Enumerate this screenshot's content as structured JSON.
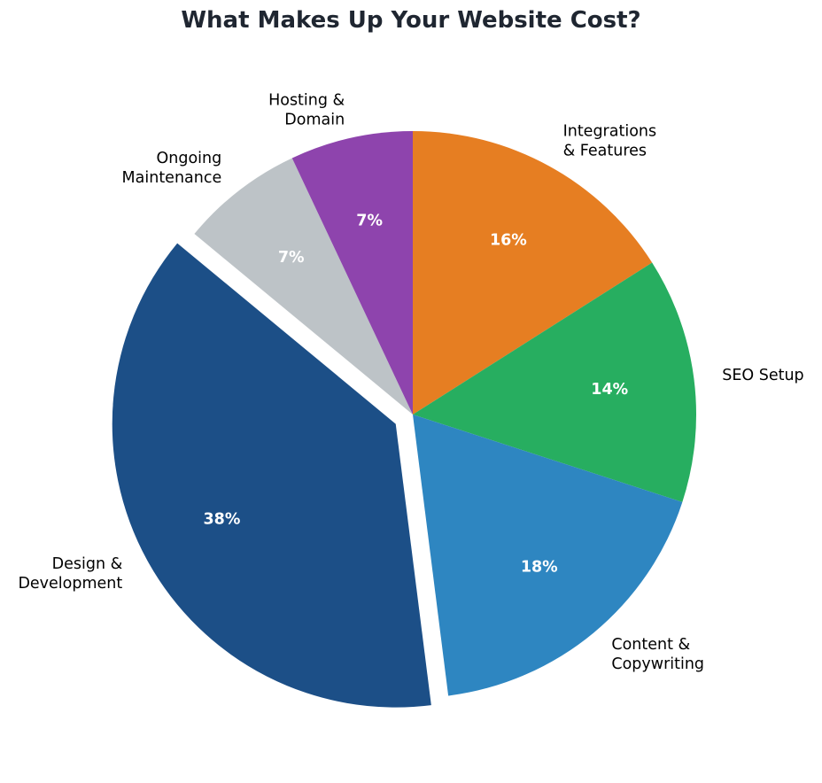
{
  "chart_data": {
    "type": "pie",
    "title": "What Makes Up Your Website Cost?",
    "start_angle_deg": 90,
    "direction": "clockwise",
    "slices": [
      {
        "label": [
          "Integrations",
          "& Features"
        ],
        "value": 16,
        "pct_label": "16%",
        "color": "#e67e22",
        "exploded": false
      },
      {
        "label": [
          "SEO Setup"
        ],
        "value": 14,
        "pct_label": "14%",
        "color": "#27ae60",
        "exploded": false
      },
      {
        "label": [
          "Content &",
          "Copywriting"
        ],
        "value": 18,
        "pct_label": "18%",
        "color": "#2e86c1",
        "exploded": false
      },
      {
        "label": [
          "Design &",
          "Development"
        ],
        "value": 38,
        "pct_label": "38%",
        "color": "#1c4f87",
        "exploded": true
      },
      {
        "label": [
          "Ongoing",
          "Maintenance"
        ],
        "value": 7,
        "pct_label": "7%",
        "color": "#bdc3c7",
        "exploded": false
      },
      {
        "label": [
          "Hosting &",
          "Domain"
        ],
        "value": 7,
        "pct_label": "7%",
        "color": "#8e44ad",
        "exploded": false
      }
    ]
  }
}
